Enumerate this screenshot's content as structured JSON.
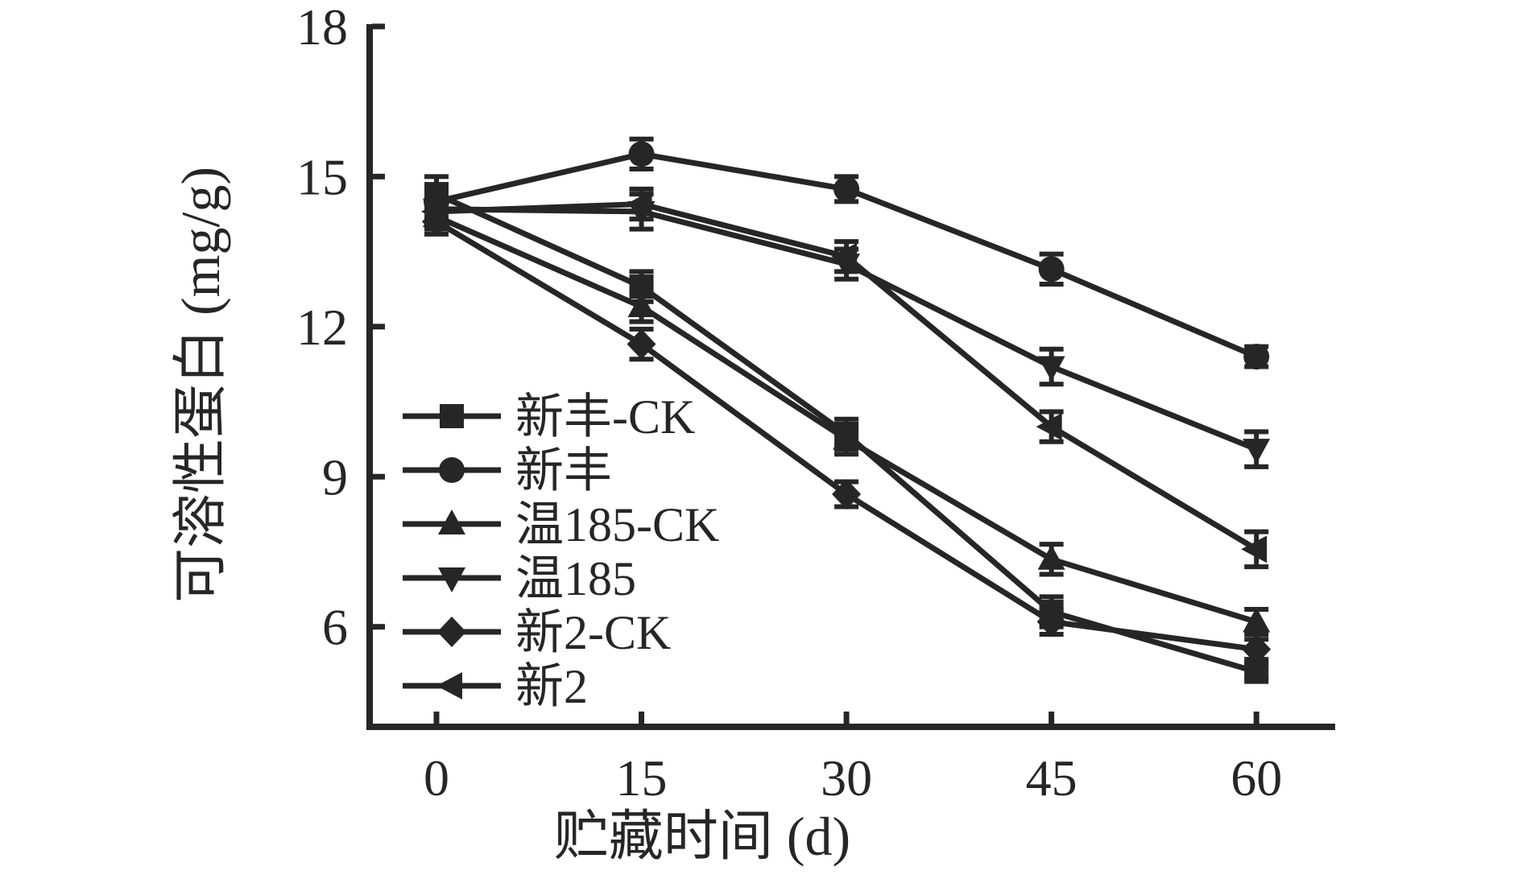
{
  "chart_data": {
    "type": "line",
    "title": "",
    "xlabel": "贮藏时间 (d)",
    "ylabel": "可溶性蛋白 (mg/g)",
    "color": "#262626",
    "grid": false,
    "legend_position": "inside-left-middle",
    "x": [
      0,
      15,
      30,
      45,
      60
    ],
    "x_ticks": [
      "0",
      "15",
      "30",
      "45",
      "60"
    ],
    "y_ticks": [
      "6",
      "9",
      "12",
      "15",
      "18"
    ],
    "xlim": [
      -5,
      65.5
    ],
    "ylim": [
      4.0,
      18.1
    ],
    "series": [
      {
        "name": "新丰-CK",
        "marker": "square",
        "values": [
          14.65,
          12.8,
          9.85,
          6.3,
          5.1
        ],
        "errors": [
          0.35,
          0.3,
          0.3,
          0.3,
          0.15
        ]
      },
      {
        "name": "新丰",
        "marker": "circle",
        "values": [
          14.5,
          15.45,
          14.75,
          13.15,
          11.4
        ],
        "errors": [
          0.3,
          0.3,
          0.25,
          0.3,
          0.2
        ]
      },
      {
        "name": "温185-CK",
        "marker": "triangle-up",
        "values": [
          14.2,
          12.4,
          9.75,
          7.35,
          6.1
        ],
        "errors": [
          0.25,
          0.3,
          0.3,
          0.3,
          0.25
        ]
      },
      {
        "name": "温185",
        "marker": "triangle-down",
        "values": [
          14.35,
          14.3,
          13.25,
          11.2,
          9.55
        ],
        "errors": [
          0.2,
          0.35,
          0.3,
          0.35,
          0.35
        ]
      },
      {
        "name": "新2-CK",
        "marker": "diamond",
        "values": [
          14.1,
          11.65,
          8.65,
          6.1,
          5.55
        ],
        "errors": [
          0.25,
          0.3,
          0.25,
          0.25,
          0.2
        ]
      },
      {
        "name": "新2",
        "marker": "triangle-left",
        "values": [
          14.3,
          14.45,
          13.4,
          10.0,
          7.55
        ],
        "errors": [
          0.25,
          0.3,
          0.3,
          0.3,
          0.35
        ]
      }
    ]
  }
}
